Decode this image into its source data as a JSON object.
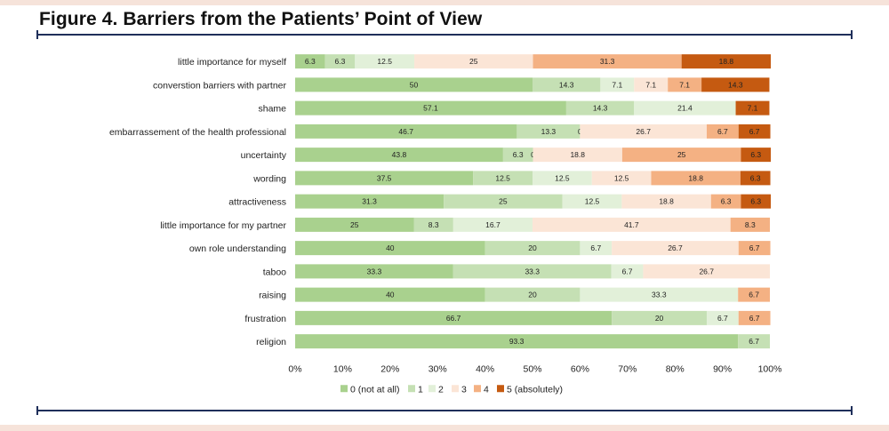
{
  "page": {
    "title": "Figure 4. Barriers from the Patients’ Point of View",
    "band_color": "#f6e3da",
    "rule_color": "#1f2f5a"
  },
  "chart_data": {
    "type": "bar",
    "orientation": "horizontal",
    "stacked": "100%",
    "categories": [
      "little importance for myself",
      "converstion barriers with partner",
      "shame",
      "embarrassement of the health professional",
      "uncertainty",
      "wording",
      "attractiveness",
      "little importance for my partner",
      "own role understanding",
      "taboo",
      "raising",
      "frustration",
      "religion"
    ],
    "series": [
      {
        "name": "0 (not at all)",
        "color": "#a9d18e",
        "values": [
          6.3,
          50,
          57.1,
          46.7,
          43.8,
          37.5,
          31.3,
          25,
          40,
          33.3,
          40,
          66.7,
          93.3
        ]
      },
      {
        "name": "1",
        "color": "#c5e0b4",
        "values": [
          6.3,
          14.3,
          14.3,
          13.3,
          6.3,
          12.5,
          25,
          8.3,
          20,
          33.3,
          20,
          20,
          6.7
        ]
      },
      {
        "name": "2",
        "color": "#e2f0d9",
        "values": [
          12.5,
          7.1,
          21.4,
          0,
          0,
          12.5,
          12.5,
          16.7,
          6.7,
          6.7,
          33.3,
          6.7,
          null
        ]
      },
      {
        "name": "3",
        "color": "#fbe5d6",
        "values": [
          25,
          7.1,
          null,
          26.7,
          18.8,
          12.5,
          18.8,
          41.7,
          26.7,
          26.7,
          null,
          null,
          null
        ]
      },
      {
        "name": "4",
        "color": "#f4b183",
        "values": [
          31.3,
          7.1,
          null,
          6.7,
          25,
          18.8,
          6.3,
          8.3,
          6.7,
          null,
          6.7,
          6.7,
          null
        ]
      },
      {
        "name": "5 (absolutely)",
        "color": "#c55a11",
        "values": [
          18.8,
          14.3,
          7.1,
          6.7,
          6.3,
          6.3,
          6.3,
          null,
          null,
          null,
          null,
          null,
          null
        ]
      }
    ],
    "xlim": [
      0,
      100
    ],
    "x_ticks": [
      "0%",
      "10%",
      "20%",
      "30%",
      "40%",
      "50%",
      "60%",
      "70%",
      "80%",
      "90%",
      "100%"
    ],
    "legend": "bottom",
    "grid": false
  }
}
